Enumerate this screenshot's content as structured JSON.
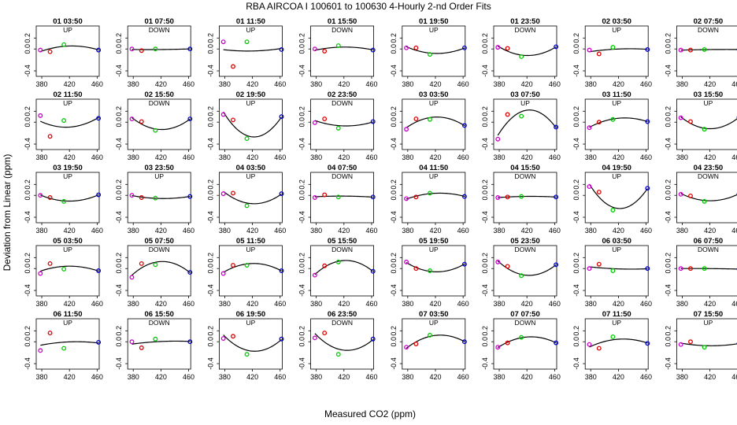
{
  "title": "RBA   AIRCOA I   100601 to 100630   4-Hourly 2-nd Order Fits",
  "xlabel": "Measured CO2 (ppm)",
  "ylabel": "Deviation from Linear (ppm)",
  "colors": {
    "point1": "#cc00cc",
    "point2": "#dd0000",
    "point3": "#00cc00",
    "point4": "#0000cc",
    "curve": "#000000"
  },
  "chart_data": {
    "type": "scatter",
    "layout": {
      "rows": 5,
      "cols": 8
    },
    "xlim": [
      372,
      463
    ],
    "ylim": [
      -0.5,
      0.42
    ],
    "xticks": [
      380,
      420,
      460
    ],
    "yticks": [
      -0.4,
      0,
      0.2
    ],
    "ytick_labels": [
      "-0.4",
      "0.0",
      "0.2"
    ],
    "x_positions": [
      378,
      392,
      412,
      462
    ],
    "panels": [
      {
        "title": "01 03:50",
        "dir": "UP",
        "y": [
          -0.02,
          -0.05,
          0.08,
          -0.02
        ]
      },
      {
        "title": "01 07:50",
        "dir": "DOWN",
        "y": [
          0.0,
          -0.03,
          0.0,
          0.0
        ]
      },
      {
        "title": "01 11:50",
        "dir": "UP",
        "y": [
          0.13,
          -0.32,
          0.13,
          -0.01
        ]
      },
      {
        "title": "01 15:50",
        "dir": "DOWN",
        "y": [
          0.0,
          -0.04,
          0.06,
          -0.02
        ]
      },
      {
        "title": "01 19:50",
        "dir": "UP",
        "y": [
          0.02,
          0.02,
          -0.1,
          0.02
        ]
      },
      {
        "title": "01 23:50",
        "dir": "DOWN",
        "y": [
          0.03,
          0.01,
          -0.14,
          0.04
        ]
      },
      {
        "title": "02 03:50",
        "dir": "UP",
        "y": [
          -0.02,
          -0.09,
          0.03,
          -0.01
        ]
      },
      {
        "title": "02 07:50",
        "dir": "DOWN",
        "y": [
          -0.02,
          -0.02,
          -0.01,
          -0.01
        ]
      },
      {
        "title": "02 11:50",
        "dir": "UP",
        "y": [
          0.12,
          -0.26,
          0.03,
          0.07
        ]
      },
      {
        "title": "02 15:50",
        "dir": "DOWN",
        "y": [
          0.06,
          0.01,
          -0.15,
          0.06
        ]
      },
      {
        "title": "02 19:50",
        "dir": "UP",
        "y": [
          0.14,
          0.04,
          -0.3,
          0.1
        ]
      },
      {
        "title": "02 23:50",
        "dir": "DOWN",
        "y": [
          -0.01,
          0.06,
          -0.11,
          0.01
        ]
      },
      {
        "title": "03 03:50",
        "dir": "UP",
        "y": [
          -0.13,
          0.06,
          0.05,
          -0.06
        ]
      },
      {
        "title": "03 07:50",
        "dir": "UP",
        "y": [
          -0.31,
          0.14,
          0.11,
          -0.09
        ]
      },
      {
        "title": "03 11:50",
        "dir": "UP",
        "y": [
          -0.1,
          0.0,
          0.05,
          0.01
        ]
      },
      {
        "title": "03 15:50",
        "dir": "UP",
        "y": [
          0.08,
          0.01,
          -0.13,
          0.09
        ]
      },
      {
        "title": "03 19:50",
        "dir": "UP",
        "y": [
          0.0,
          -0.04,
          -0.11,
          0.01
        ]
      },
      {
        "title": "03 23:50",
        "dir": "UP",
        "y": [
          0.0,
          -0.04,
          -0.05,
          -0.02
        ]
      },
      {
        "title": "04 03:50",
        "dir": "UP",
        "y": [
          0.03,
          0.04,
          -0.19,
          0.03
        ]
      },
      {
        "title": "04 07:50",
        "dir": "DOWN",
        "y": [
          -0.04,
          0.01,
          -0.03,
          -0.03
        ]
      },
      {
        "title": "04 11:50",
        "dir": "UP",
        "y": [
          -0.06,
          -0.03,
          0.04,
          -0.02
        ]
      },
      {
        "title": "04 15:50",
        "dir": "DOWN",
        "y": [
          -0.04,
          -0.03,
          -0.02,
          -0.03
        ]
      },
      {
        "title": "04 19:50",
        "dir": "UP",
        "y": [
          0.16,
          0.06,
          -0.27,
          0.13
        ]
      },
      {
        "title": "04 23:50",
        "dir": "DOWN",
        "y": [
          0.02,
          -0.01,
          -0.11,
          0.03
        ]
      },
      {
        "title": "05 03:50",
        "dir": "UP",
        "y": [
          -0.09,
          0.09,
          -0.01,
          -0.04
        ]
      },
      {
        "title": "05 07:50",
        "dir": "DOWN",
        "y": [
          -0.16,
          0.09,
          0.07,
          -0.07
        ]
      },
      {
        "title": "05 11:50",
        "dir": "UP",
        "y": [
          -0.09,
          0.06,
          0.06,
          -0.04
        ]
      },
      {
        "title": "05 15:50",
        "dir": "DOWN",
        "y": [
          -0.12,
          0.05,
          0.12,
          -0.05
        ]
      },
      {
        "title": "05 19:50",
        "dir": "UP",
        "y": [
          0.12,
          0.0,
          -0.04,
          0.08
        ]
      },
      {
        "title": "05 23:50",
        "dir": "DOWN",
        "y": [
          0.12,
          0.04,
          -0.13,
          0.07
        ]
      },
      {
        "title": "06 03:50",
        "dir": "UP",
        "y": [
          0.0,
          0.08,
          -0.04,
          0.0
        ]
      },
      {
        "title": "06 07:50",
        "dir": "DOWN",
        "y": [
          0.0,
          0.0,
          0.0,
          -0.01
        ]
      },
      {
        "title": "06 11:50",
        "dir": "UP",
        "y": [
          -0.16,
          0.16,
          -0.12,
          -0.01
        ]
      },
      {
        "title": "06 15:50",
        "dir": "DOWN",
        "y": [
          0.0,
          -0.11,
          0.05,
          0.0
        ]
      },
      {
        "title": "06 19:50",
        "dir": "UP",
        "y": [
          0.06,
          0.1,
          -0.23,
          0.05
        ]
      },
      {
        "title": "06 23:50",
        "dir": "DOWN",
        "y": [
          0.07,
          0.16,
          -0.23,
          0.05
        ]
      },
      {
        "title": "07 03:50",
        "dir": "UP",
        "y": [
          -0.1,
          -0.04,
          0.12,
          0.0
        ]
      },
      {
        "title": "07 07:50",
        "dir": "DOWN",
        "y": [
          -0.1,
          -0.02,
          0.08,
          -0.02
        ]
      },
      {
        "title": "07 11:50",
        "dir": "UP",
        "y": [
          -0.05,
          -0.12,
          0.09,
          -0.03
        ]
      },
      {
        "title": "07 15:50",
        "dir": "UP",
        "y": [
          -0.05,
          0.0,
          -0.1,
          -0.03
        ]
      }
    ]
  }
}
